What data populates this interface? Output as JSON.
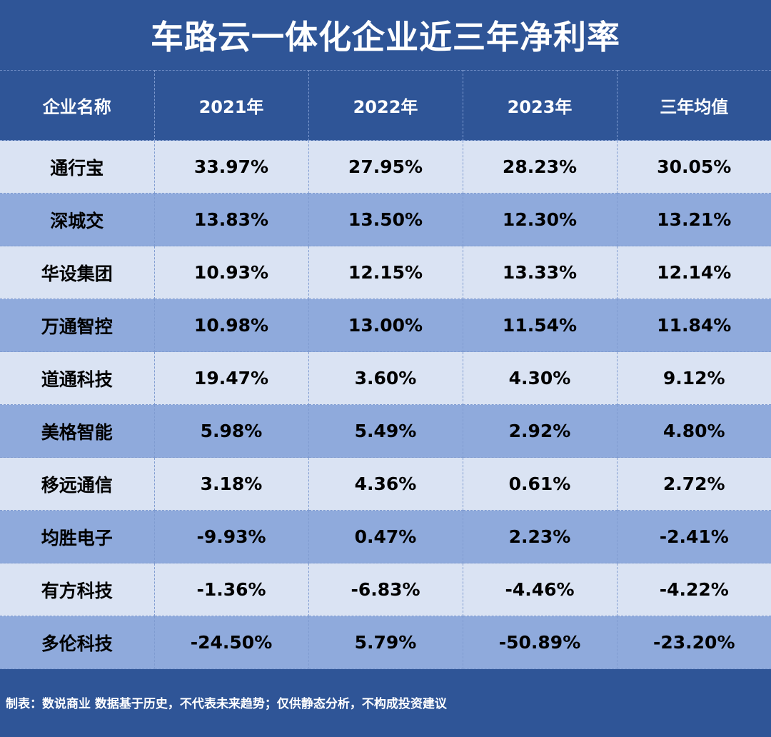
{
  "title": "车路云一体化企业近三年净利率",
  "table": {
    "headers": [
      "企业名称",
      "2021年",
      "2022年",
      "2023年",
      "三年均值"
    ],
    "rows": [
      [
        "通行宝",
        "33.97%",
        "27.95%",
        "28.23%",
        "30.05%"
      ],
      [
        "深城交",
        "13.83%",
        "13.50%",
        "12.30%",
        "13.21%"
      ],
      [
        "华设集团",
        "10.93%",
        "12.15%",
        "13.33%",
        "12.14%"
      ],
      [
        "万通智控",
        "10.98%",
        "13.00%",
        "11.54%",
        "11.84%"
      ],
      [
        "道通科技",
        "19.47%",
        "3.60%",
        "4.30%",
        "9.12%"
      ],
      [
        "美格智能",
        "5.98%",
        "5.49%",
        "2.92%",
        "4.80%"
      ],
      [
        "移远通信",
        "3.18%",
        "4.36%",
        "0.61%",
        "2.72%"
      ],
      [
        "均胜电子",
        "-9.93%",
        "0.47%",
        "2.23%",
        "-2.41%"
      ],
      [
        "有方科技",
        "-1.36%",
        "-6.83%",
        "-4.46%",
        "-4.22%"
      ],
      [
        "多伦科技",
        "-24.50%",
        "5.79%",
        "-50.89%",
        "-23.20%"
      ]
    ]
  },
  "footer": "制表：数说商业 数据基于历史，不代表未来趋势；仅供静态分析，不构成投资建议",
  "colors": {
    "background": "#2f5597",
    "row_light": "#dae3f3",
    "row_dark": "#8faadc",
    "header_text": "#ffffff",
    "cell_text": "#000000"
  }
}
